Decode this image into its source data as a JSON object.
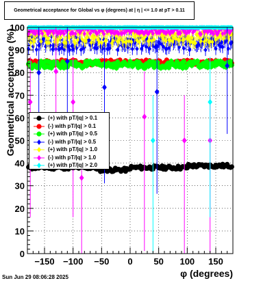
{
  "footer": {
    "timestamp": "Sun Jun 29 08:06:28 2025"
  },
  "chart_data": {
    "type": "scatter",
    "title": "Geometrical acceptance for Global vs φ (degrees) at |  η  | <= 1.0 at pT > 0.11",
    "xlabel": "φ (degrees)",
    "ylabel": "Geometrical acceptance (%)",
    "xlim": [
      -180,
      180
    ],
    "ylim": [
      0,
      100
    ],
    "xticks": [
      -150,
      -100,
      -50,
      0,
      50,
      100,
      150
    ],
    "xtick_labels": [
      "−150",
      "−100",
      "−50",
      "0",
      "50",
      "100",
      "150"
    ],
    "yticks": [
      0,
      10,
      20,
      30,
      40,
      50,
      60,
      70,
      80,
      90,
      100
    ],
    "grid": true,
    "legend_placement": "middle-left",
    "series": [
      {
        "name": "(+) with pT/|q| > 0.1",
        "color": "#000000",
        "marker": "circle",
        "base": 38.0,
        "spread": 0.8
      },
      {
        "name": "(-) with pT/|q| > 0.1",
        "color": "#ff0000",
        "marker": "circle",
        "base": 84.5,
        "spread": 1.2
      },
      {
        "name": "(+) with pT/|q| > 0.5",
        "color": "#00ff00",
        "marker": "circle",
        "base": 83.5,
        "spread": 1.5
      },
      {
        "name": "(-) with pT/|q| > 0.5",
        "color": "#0000ff",
        "marker": "diamond",
        "base": 93.0,
        "spread": 3.0
      },
      {
        "name": "(+) with pT/|q| > 1.0",
        "color": "#ffff00",
        "marker": "diamond",
        "base": 96.0,
        "spread": 3.0
      },
      {
        "name": "(-) with pT/|q| > 1.0",
        "color": "#ff00ff",
        "marker": "diamond",
        "base": 98.5,
        "spread": 1.5
      },
      {
        "name": "(+) with pT/|q| > 2.0",
        "color": "#00ffff",
        "marker": "diamond",
        "base": 100.0,
        "spread": 0.2
      }
    ],
    "outliers": [
      {
        "series": 3,
        "x": -160,
        "y": 80
      },
      {
        "series": 3,
        "x": -110,
        "y": 85
      },
      {
        "series": 3,
        "x": -45,
        "y": 73.5
      },
      {
        "series": 3,
        "x": 47,
        "y": 71.5
      },
      {
        "series": 3,
        "x": 170,
        "y": 83
      },
      {
        "series": 5,
        "x": -175,
        "y": 67
      },
      {
        "series": 5,
        "x": -130,
        "y": 80.5
      },
      {
        "series": 5,
        "x": -100,
        "y": 67
      },
      {
        "series": 5,
        "x": -85,
        "y": 33.5
      },
      {
        "series": 5,
        "x": 25,
        "y": 60.5
      },
      {
        "series": 5,
        "x": 95,
        "y": 50
      },
      {
        "series": 5,
        "x": 140,
        "y": 50
      },
      {
        "series": 6,
        "x": 40,
        "y": 50
      },
      {
        "series": 6,
        "x": 140,
        "y": 67
      }
    ]
  }
}
